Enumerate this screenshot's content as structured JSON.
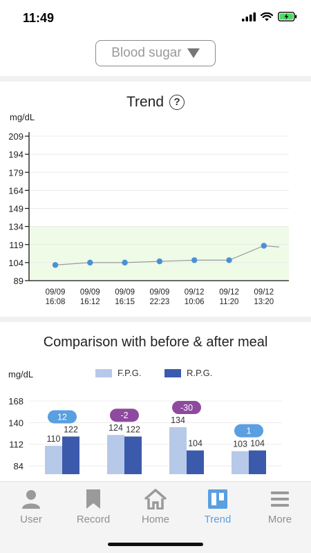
{
  "status": {
    "time": "11:49"
  },
  "selector": {
    "label": "Blood sugar"
  },
  "trend": {
    "title": "Trend",
    "help": "?",
    "unit": "mg/dL"
  },
  "compare": {
    "title": "Comparison with before & after meal",
    "unit": "mg/dL",
    "legend": {
      "fpg": "F.P.G.",
      "rpg": "R.P.G."
    }
  },
  "tabs": [
    {
      "label": "User",
      "icon": "user-icon"
    },
    {
      "label": "Record",
      "icon": "bookmark-icon"
    },
    {
      "label": "Home",
      "icon": "home-icon"
    },
    {
      "label": "Trend",
      "icon": "trend-icon",
      "active": true
    },
    {
      "label": "More",
      "icon": "menu-icon"
    }
  ],
  "colors": {
    "accent": "#5a9fe0",
    "fpg": "#b7c9e8",
    "rpg": "#3b5aac",
    "normal_band": "#eefbe6"
  },
  "chart_data": [
    {
      "type": "line",
      "title": "Trend",
      "ylabel": "mg/dL",
      "ylim": [
        89,
        209
      ],
      "yticks": [
        89,
        104,
        119,
        134,
        149,
        164,
        179,
        194,
        209
      ],
      "normal_range": [
        89,
        134
      ],
      "x": [
        "09/09 16:08",
        "09/09 16:12",
        "09/09 16:15",
        "09/09 22:23",
        "09/12 10:06",
        "09/12 11:20",
        "09/12 13:20"
      ],
      "values": [
        102,
        104,
        104,
        105,
        106,
        106,
        118
      ],
      "trailing_value": 117
    },
    {
      "type": "bar",
      "title": "Comparison with before & after meal",
      "ylabel": "mg/dL",
      "ylim": [
        70,
        168
      ],
      "yticks": [
        84,
        112,
        140,
        168
      ],
      "series": [
        {
          "name": "F.P.G.",
          "values": [
            110,
            124,
            134,
            103
          ]
        },
        {
          "name": "R.P.G.",
          "values": [
            122,
            122,
            104,
            104
          ]
        }
      ],
      "differences": [
        "12",
        "-2",
        "-30",
        "1"
      ],
      "difference_colors": [
        "#5a9fe0",
        "#8e4a9e",
        "#8e4a9e",
        "#5a9fe0"
      ]
    }
  ]
}
